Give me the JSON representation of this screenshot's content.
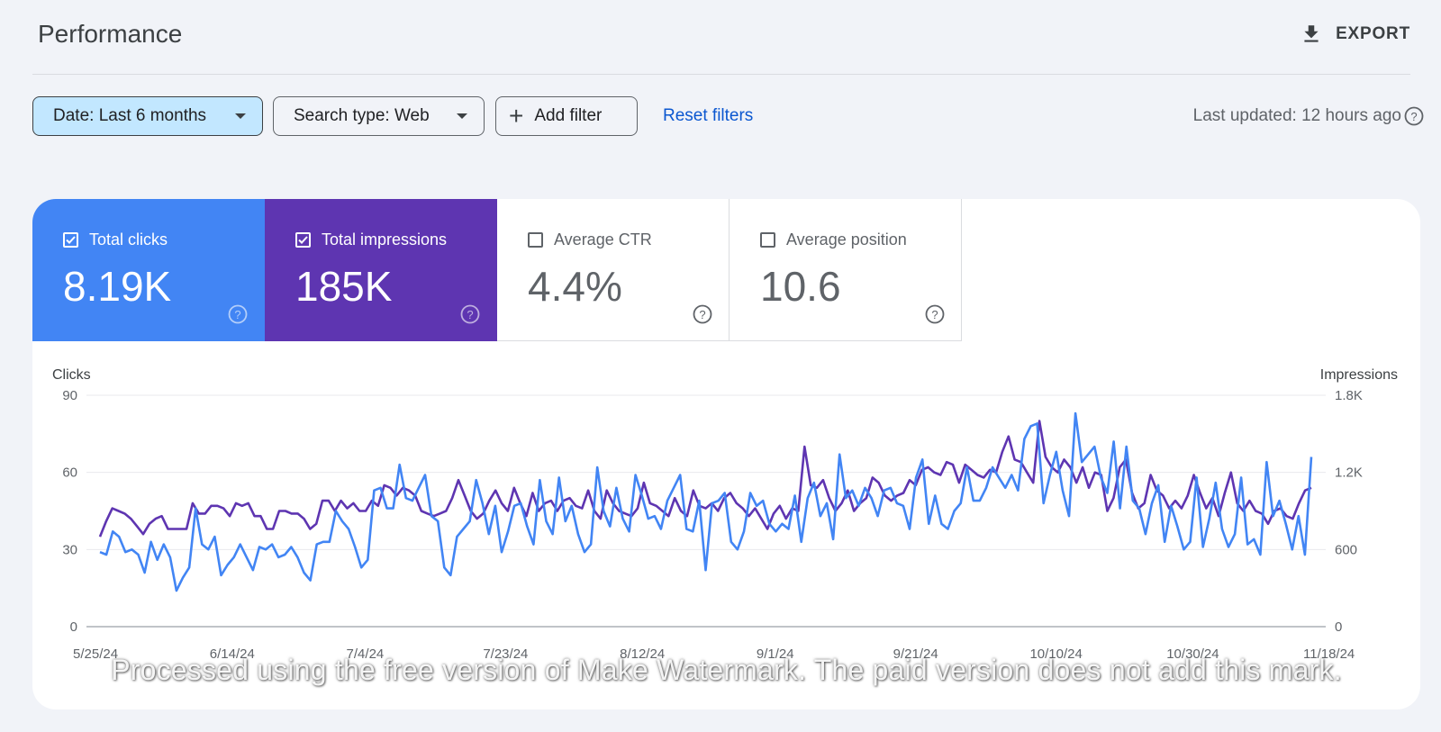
{
  "header": {
    "title": "Performance",
    "export_label": "EXPORT"
  },
  "filters": {
    "date_label": "Date: Last 6 months",
    "search_type_label": "Search type: Web",
    "add_filter_label": "Add filter",
    "reset_label": "Reset filters",
    "last_updated": "Last updated: 12 hours ago"
  },
  "metrics": [
    {
      "label": "Total clicks",
      "value": "8.19K",
      "checked": true,
      "color": "#4285f4"
    },
    {
      "label": "Total impressions",
      "value": "185K",
      "checked": true,
      "color": "#5e35b1"
    },
    {
      "label": "Average CTR",
      "value": "4.4%",
      "checked": false
    },
    {
      "label": "Average position",
      "value": "10.6",
      "checked": false
    }
  ],
  "chart_data": {
    "type": "line",
    "left_axis_label": "Clicks",
    "right_axis_label": "Impressions",
    "left_ticks": [
      "0",
      "30",
      "60",
      "90"
    ],
    "right_ticks": [
      "0",
      "600",
      "1.2K",
      "1.8K"
    ],
    "ylim_left": [
      0,
      90
    ],
    "ylim_right": [
      0,
      1800
    ],
    "x_tick_labels": [
      "5/25/24",
      "6/14/24",
      "7/4/24",
      "7/23/24",
      "8/12/24",
      "9/1/24",
      "9/21/24",
      "10/10/24",
      "10/30/24",
      "11/18/24"
    ],
    "grid": true,
    "series": [
      {
        "name": "Clicks",
        "axis": "left",
        "color": "#4285f4",
        "values": [
          29,
          28,
          37,
          35,
          29,
          30,
          28,
          21,
          33,
          26,
          32,
          27,
          14,
          19,
          23,
          46,
          32,
          30,
          35,
          20,
          24,
          27,
          32,
          27,
          22,
          31,
          30,
          32,
          27,
          28,
          31,
          27,
          21,
          18,
          32,
          33,
          33,
          45,
          41,
          38,
          31,
          23,
          26,
          53,
          54,
          46,
          46,
          63,
          50,
          49,
          54,
          59,
          43,
          41,
          23,
          20,
          35,
          38,
          41,
          57,
          48,
          36,
          47,
          29,
          37,
          47,
          48,
          39,
          32,
          57,
          41,
          36,
          58,
          41,
          47,
          36,
          29,
          32,
          62,
          45,
          39,
          54,
          42,
          37,
          59,
          51,
          42,
          43,
          38,
          49,
          54,
          59,
          38,
          37,
          49,
          22,
          48,
          49,
          52,
          33,
          30,
          37,
          52,
          47,
          49,
          40,
          37,
          40,
          38,
          51,
          33,
          50,
          56,
          43,
          48,
          34,
          67,
          50,
          53,
          47,
          54,
          50,
          43,
          53,
          54,
          48,
          47,
          38,
          58,
          65,
          40,
          51,
          40,
          38,
          45,
          48,
          62,
          49,
          49,
          54,
          62,
          58,
          54,
          59,
          53,
          73,
          78,
          79,
          48,
          59,
          68,
          53,
          43,
          83,
          64,
          67,
          70,
          58,
          52,
          72,
          46,
          70,
          49,
          46,
          36,
          48,
          55,
          33,
          47,
          39,
          30,
          33,
          58,
          31,
          42,
          56,
          38,
          31,
          36,
          58,
          32,
          34,
          28,
          64,
          43,
          49,
          40,
          30,
          43,
          28,
          66
        ]
      },
      {
        "name": "Impressions",
        "axis": "right",
        "color": "#5e35b1",
        "values": [
          700,
          820,
          920,
          900,
          880,
          840,
          780,
          720,
          800,
          840,
          860,
          760,
          760,
          760,
          760,
          960,
          880,
          880,
          940,
          940,
          920,
          860,
          960,
          940,
          960,
          860,
          860,
          760,
          760,
          900,
          900,
          880,
          880,
          840,
          760,
          800,
          980,
          980,
          900,
          980,
          920,
          960,
          900,
          900,
          980,
          940,
          1100,
          1080,
          1020,
          1080,
          1060,
          1020,
          900,
          880,
          860,
          880,
          900,
          1000,
          1140,
          1020,
          900,
          840,
          880,
          980,
          1060,
          960,
          900,
          1080,
          960,
          860,
          1040,
          900,
          960,
          980,
          900,
          980,
          1000,
          940,
          920,
          1060,
          900,
          840,
          1060,
          960,
          900,
          880,
          860,
          920,
          1120,
          960,
          940,
          900,
          860,
          1000,
          900,
          860,
          1060,
          940,
          920,
          960,
          900,
          1000,
          1040,
          960,
          920,
          860,
          920,
          840,
          760,
          880,
          940,
          840,
          920,
          900,
          1400,
          1100,
          1080,
          1140,
          1000,
          900,
          960,
          1060,
          900,
          960,
          1000,
          1160,
          1120,
          1020,
          980,
          1020,
          1040,
          1140,
          1100,
          1220,
          1240,
          1200,
          1180,
          1280,
          1260,
          1120,
          1260,
          1220,
          1180,
          1160,
          1220,
          1200,
          1360,
          1480,
          1300,
          1280,
          1200,
          1120,
          1600,
          1320,
          1240,
          1200,
          1300,
          1240,
          1120,
          1240,
          1080,
          1200,
          1180,
          900,
          1000,
          1240,
          1300,
          1040,
          920,
          960,
          1180,
          1060,
          1020,
          920,
          980,
          920,
          1020,
          1180,
          1040,
          920,
          1000,
          860,
          1040,
          1200,
          960,
          900,
          980,
          900,
          880,
          800,
          900,
          920,
          860,
          840,
          960,
          1060,
          1080
        ]
      }
    ]
  },
  "watermark": "Processed using the free version of Make Watermark. The paid version does not add this mark.",
  "icons": {
    "export": "download-icon",
    "help": "help-circle-icon",
    "caret": "caret-down-icon",
    "plus": "plus-icon",
    "checkbox": "checkbox-icon"
  }
}
